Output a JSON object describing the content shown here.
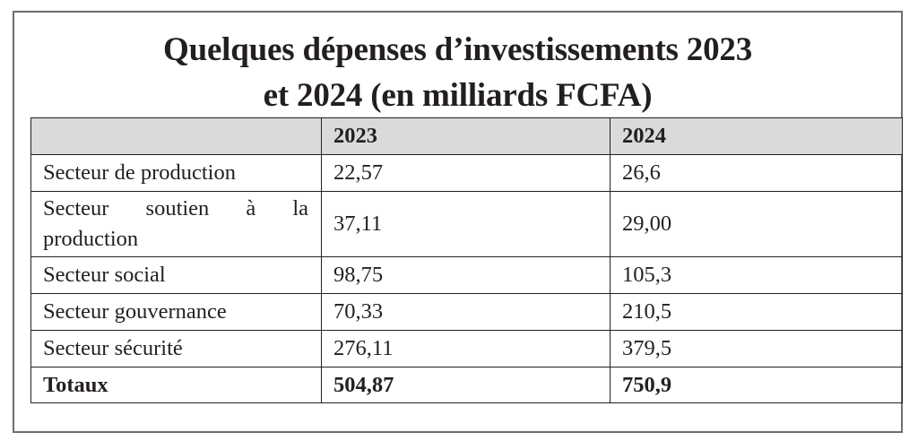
{
  "title": {
    "line1": "Quelques dépenses d’investissements 2023",
    "line2": "et 2024 (en milliards FCFA)"
  },
  "table": {
    "headers": [
      "",
      "2023",
      "2024"
    ],
    "rows": [
      {
        "label": "Secteur de production",
        "v2023": "22,57",
        "v2024": "26,6"
      },
      {
        "label": "Secteur soutien à la production",
        "v2023": "37,11",
        "v2024": "29,00"
      },
      {
        "label": "Secteur social",
        "v2023": "98,75",
        "v2024": "105,3"
      },
      {
        "label": "Secteur gouvernance",
        "v2023": "70,33",
        "v2024": "210,5"
      },
      {
        "label": "Secteur sécurité",
        "v2023": "276,11",
        "v2024": "379,5"
      }
    ],
    "total": {
      "label": "Totaux",
      "v2023": "504,87",
      "v2024": "750,9"
    }
  }
}
